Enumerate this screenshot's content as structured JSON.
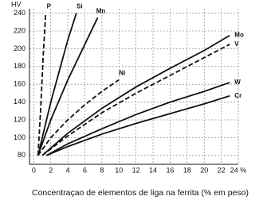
{
  "chart_data": {
    "type": "line",
    "y_label": "HV",
    "x_label": "Concentraçao de elementos de liga na ferrita (% em peso)",
    "xlim": [
      -0.5,
      24
    ],
    "ylim": [
      70,
      245
    ],
    "xticks": [
      0,
      2,
      4,
      6,
      8,
      10,
      12,
      14,
      16,
      18,
      20,
      22,
      {
        "value": 24,
        "label": "24 %"
      }
    ],
    "yticks": [
      80,
      100,
      120,
      140,
      160,
      180,
      200,
      220,
      240
    ],
    "grid": true,
    "series": [
      {
        "name": "P",
        "color": "#111111",
        "style": "dashed",
        "x": [
          0.5,
          0.8,
          1.1,
          1.4
        ],
        "values": [
          80,
          130,
          190,
          240
        ]
      },
      {
        "name": "Si",
        "color": "#111111",
        "style": "solid",
        "x": [
          0.5,
          1,
          2,
          3,
          4,
          5
        ],
        "values": [
          80,
          100,
          140,
          175,
          210,
          240
        ]
      },
      {
        "name": "Mn",
        "color": "#111111",
        "style": "solid",
        "x": [
          0.5,
          2,
          4,
          6,
          7.5
        ],
        "values": [
          80,
          120,
          165,
          205,
          235
        ]
      },
      {
        "name": "Ni",
        "color": "#111111",
        "style": "dashed",
        "x": [
          0.5,
          2,
          4,
          6,
          8,
          10
        ],
        "values": [
          80,
          100,
          120,
          137,
          152,
          165
        ]
      },
      {
        "name": "Mo",
        "color": "#111111",
        "style": "solid",
        "x": [
          1,
          4,
          8,
          12,
          16,
          20,
          23
        ],
        "values": [
          80,
          105,
          133,
          157,
          178,
          198,
          215
        ]
      },
      {
        "name": "V",
        "color": "#111111",
        "style": "dashed",
        "x": [
          1,
          4,
          8,
          12,
          16,
          20,
          23
        ],
        "values": [
          80,
          102,
          128,
          150,
          170,
          190,
          205
        ]
      },
      {
        "name": "W",
        "color": "#111111",
        "style": "solid",
        "x": [
          1.5,
          4,
          8,
          12,
          16,
          20,
          23
        ],
        "values": [
          80,
          93,
          110,
          126,
          140,
          152,
          162
        ]
      },
      {
        "name": "Cr",
        "color": "#111111",
        "style": "solid",
        "x": [
          1.5,
          4,
          8,
          12,
          16,
          20,
          23
        ],
        "values": [
          80,
          90,
          104,
          116,
          127,
          138,
          147
        ]
      }
    ]
  }
}
